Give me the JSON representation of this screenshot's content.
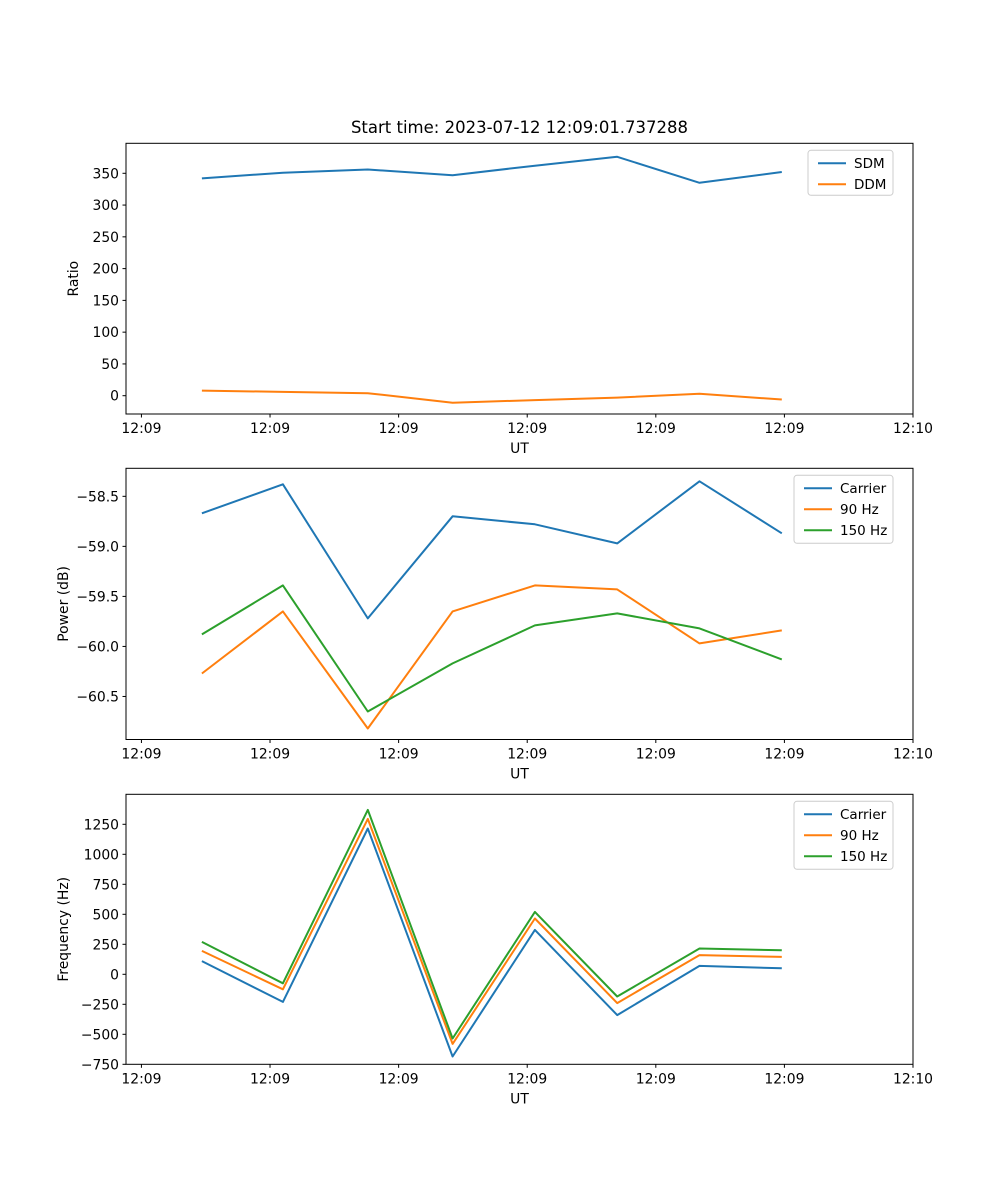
{
  "figure": {
    "title": "Start time: 2023-07-12 12:09:01.737288"
  },
  "palette": {
    "blue": "#1f77b4",
    "orange": "#ff7f0e",
    "green": "#2ca02c",
    "spine": "#000000",
    "legend_border": "#cccccc",
    "background": "#ffffff"
  },
  "chart_data": [
    {
      "name": "ratio",
      "type": "line",
      "ylabel": "Ratio",
      "xlabel": "UT",
      "grid": false,
      "legend_position": "upper right",
      "x_unit": "seconds after 12:09:00",
      "x_seconds": [
        4.7,
        11.0,
        17.6,
        24.2,
        30.6,
        37.0,
        43.4,
        49.8
      ],
      "series": [
        {
          "name": "SDM",
          "color_key": "blue",
          "values": [
            342,
            351,
            356,
            347,
            362,
            376,
            335,
            352
          ]
        },
        {
          "name": "DDM",
          "color_key": "orange",
          "values": [
            8,
            6,
            4,
            -11,
            -7,
            -3,
            3,
            -6
          ]
        }
      ],
      "xlim_seconds": [
        -1.2,
        60
      ],
      "ylim": [
        -28.8,
        397.2
      ],
      "yticks": [
        0,
        50,
        100,
        150,
        200,
        250,
        300,
        350
      ],
      "ytick_labels": [
        "0",
        "50",
        "100",
        "150",
        "200",
        "250",
        "300",
        "350"
      ],
      "xticks_seconds": [
        0,
        10,
        20,
        30,
        40,
        50,
        60
      ],
      "xtick_labels": [
        "12:09",
        "12:09",
        "12:09",
        "12:09",
        "12:09",
        "12:09",
        "12:10"
      ]
    },
    {
      "name": "power",
      "type": "line",
      "ylabel": "Power (dB)",
      "xlabel": "UT",
      "grid": false,
      "legend_position": "upper right",
      "x_unit": "seconds after 12:09:00",
      "x_seconds": [
        4.7,
        11.0,
        17.6,
        24.2,
        30.6,
        37.0,
        43.4,
        49.8
      ],
      "series": [
        {
          "name": "Carrier",
          "color_key": "blue",
          "values": [
            -58.67,
            -58.38,
            -59.72,
            -58.7,
            -58.78,
            -58.97,
            -58.35,
            -58.87
          ]
        },
        {
          "name": "90 Hz",
          "color_key": "orange",
          "values": [
            -60.27,
            -59.65,
            -60.82,
            -59.65,
            -59.39,
            -59.43,
            -59.97,
            -59.84
          ]
        },
        {
          "name": "150 Hz",
          "color_key": "green",
          "values": [
            -59.88,
            -59.39,
            -60.65,
            -60.17,
            -59.79,
            -59.67,
            -59.82,
            -60.13
          ]
        }
      ],
      "xlim_seconds": [
        -1.2,
        60
      ],
      "ylim": [
        -60.93,
        -58.22
      ],
      "yticks": [
        -58.5,
        -59.0,
        -59.5,
        -60.0,
        -60.5
      ],
      "ytick_labels": [
        "−58.5",
        "−59.0",
        "−59.5",
        "−60.0",
        "−60.5"
      ],
      "xticks_seconds": [
        0,
        10,
        20,
        30,
        40,
        50,
        60
      ],
      "xtick_labels": [
        "12:09",
        "12:09",
        "12:09",
        "12:09",
        "12:09",
        "12:09",
        "12:10"
      ]
    },
    {
      "name": "frequency",
      "type": "line",
      "ylabel": "Frequency (Hz)",
      "xlabel": "UT",
      "grid": false,
      "legend_position": "upper right",
      "x_unit": "seconds after 12:09:00",
      "x_seconds": [
        4.7,
        11.0,
        17.6,
        24.2,
        30.6,
        37.0,
        43.4,
        49.8
      ],
      "series": [
        {
          "name": "Carrier",
          "color_key": "blue",
          "values": [
            110,
            -230,
            1215,
            -685,
            370,
            -340,
            70,
            50
          ]
        },
        {
          "name": "90 Hz",
          "color_key": "orange",
          "values": [
            195,
            -125,
            1295,
            -580,
            465,
            -240,
            160,
            145
          ]
        },
        {
          "name": "150 Hz",
          "color_key": "green",
          "values": [
            270,
            -75,
            1370,
            -535,
            520,
            -185,
            215,
            200
          ]
        }
      ],
      "xlim_seconds": [
        -1.2,
        60
      ],
      "ylim": [
        -750,
        1500
      ],
      "yticks": [
        1250,
        1000,
        750,
        500,
        250,
        0,
        -250,
        -500,
        -750
      ],
      "ytick_labels": [
        "1250",
        "1000",
        "750",
        "500",
        "250",
        "0",
        "−250",
        "−500",
        "−750"
      ],
      "xticks_seconds": [
        0,
        10,
        20,
        30,
        40,
        50,
        60
      ],
      "xtick_labels": [
        "12:09",
        "12:09",
        "12:09",
        "12:09",
        "12:09",
        "12:09",
        "12:10"
      ]
    }
  ]
}
